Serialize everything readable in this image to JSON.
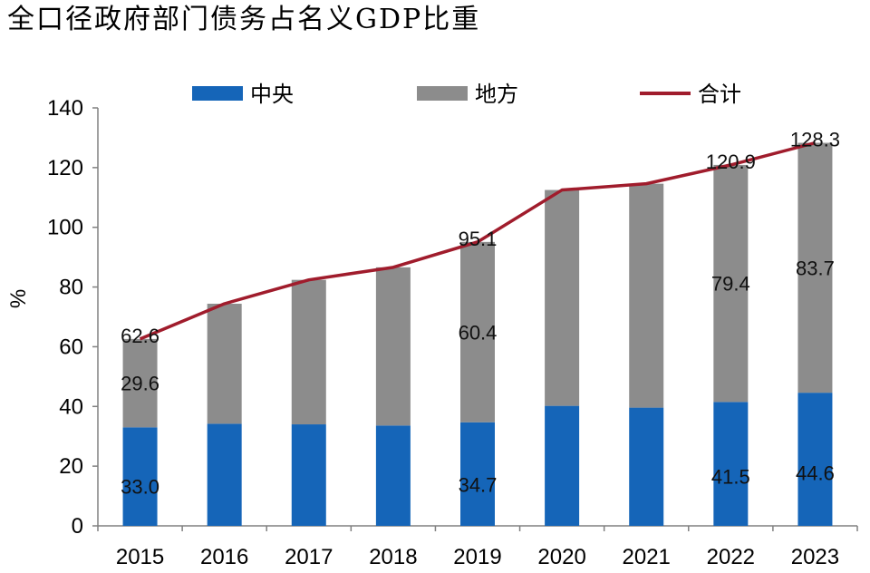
{
  "chart_data": {
    "type": "bar",
    "stacked": true,
    "title": "全口径政府部门债务占名义GDP比重",
    "xlabel": "",
    "ylabel": "%",
    "ylim": [
      0,
      140
    ],
    "yticks": [
      0,
      20,
      40,
      60,
      80,
      100,
      120,
      140
    ],
    "categories": [
      "2015",
      "2016",
      "2017",
      "2018",
      "2019",
      "2020",
      "2021",
      "2022",
      "2023"
    ],
    "series": [
      {
        "name": "中央",
        "kind": "bar",
        "color": "#1565b8",
        "values": [
          33.0,
          34.2,
          34.0,
          33.6,
          34.7,
          40.2,
          39.6,
          41.5,
          44.6
        ],
        "labels": [
          "33.0",
          "",
          "",
          "",
          "34.7",
          "",
          "",
          "41.5",
          "44.6"
        ]
      },
      {
        "name": "地方",
        "kind": "bar",
        "color": "#8c8c8c",
        "values": [
          29.6,
          40.2,
          48.4,
          53.0,
          60.4,
          72.3,
          75.0,
          79.4,
          83.7
        ],
        "labels": [
          "29.6",
          "",
          "",
          "",
          "60.4",
          "",
          "",
          "79.4",
          "83.7"
        ]
      },
      {
        "name": "合计",
        "kind": "line",
        "color": "#a01c2c",
        "values": [
          62.6,
          74.4,
          82.4,
          86.6,
          95.1,
          112.5,
          114.6,
          120.9,
          128.3
        ],
        "labels": [
          "62.6",
          "",
          "",
          "",
          "95.1",
          "",
          "",
          "120.9",
          "128.3"
        ]
      }
    ],
    "legend": {
      "position": "top-center",
      "entries": [
        "中央",
        "地方",
        "合计"
      ]
    },
    "grid": false
  }
}
